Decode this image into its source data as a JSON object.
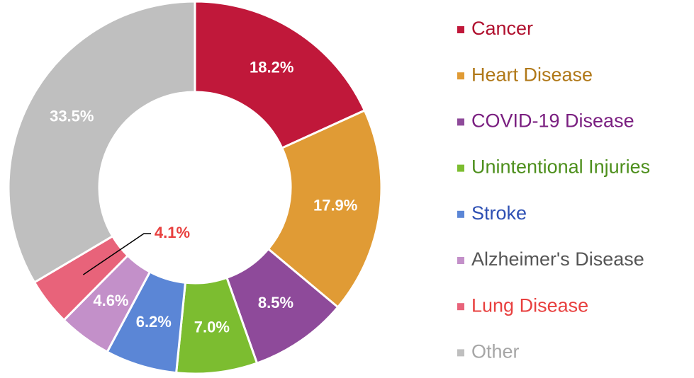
{
  "chart_data": {
    "type": "donut",
    "categories": [
      "Cancer",
      "Heart Disease",
      "COVID-19 Disease",
      "Unintentional Injuries",
      "Stroke",
      "Alzheimer's Disease",
      "Lung Disease",
      "Other"
    ],
    "values": [
      18.2,
      17.9,
      8.5,
      7.0,
      6.2,
      4.6,
      4.1,
      33.5
    ],
    "value_labels": [
      "18.2%",
      "17.9%",
      "8.5%",
      "7.0%",
      "6.2%",
      "4.6%",
      "4.1%",
      "33.5%"
    ],
    "colors": [
      "#c0183a",
      "#e09b35",
      "#8e4a9a",
      "#7cbd30",
      "#5b86d6",
      "#c390c9",
      "#e8637a",
      "#bfbfbf"
    ],
    "legend_text_colors": [
      "#b0102e",
      "#b07818",
      "#7a1f80",
      "#4d8f1c",
      "#2e50b4",
      "#555555",
      "#e8403f",
      "#a6a6a6"
    ],
    "legend": "right"
  }
}
